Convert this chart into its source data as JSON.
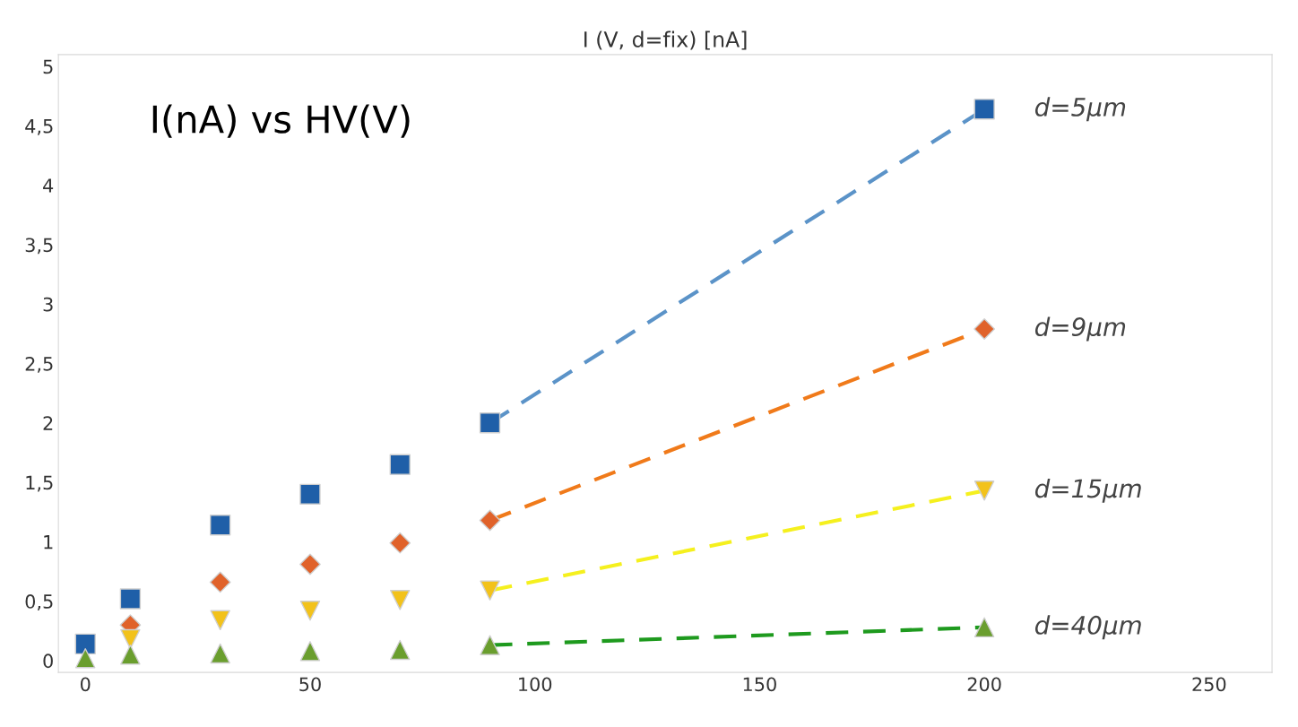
{
  "chart_data": {
    "type": "scatter",
    "title": "I (V, d=fix) [nA]",
    "annotations": [
      "I(nA) vs HV(V)"
    ],
    "xlim": [
      -6,
      264
    ],
    "xticks": [
      0,
      50,
      100,
      150,
      200,
      250
    ],
    "ylim": [
      -0.1,
      5.1
    ],
    "yticks": [
      0,
      {
        "value": 0.5,
        "label": "0,5"
      },
      1,
      {
        "value": 1.5,
        "label": "1,5"
      },
      2,
      {
        "value": 2.5,
        "label": "2,5"
      },
      3,
      {
        "value": 3.5,
        "label": "3,5"
      },
      4,
      {
        "value": 4.5,
        "label": "4,5"
      },
      5
    ],
    "grid": false,
    "legend": false,
    "series": [
      {
        "name": "d=5μm",
        "marker": "square",
        "color": "#1f5fa8",
        "x": [
          0,
          10,
          30,
          50,
          70,
          90,
          200
        ],
        "values": [
          0.14,
          0.52,
          1.14,
          1.4,
          1.65,
          2.0,
          4.64
        ]
      },
      {
        "name": "d=9μm",
        "marker": "diamond",
        "color": "#e0622a",
        "x": [
          10,
          30,
          50,
          70,
          90,
          200
        ],
        "values": [
          0.3,
          0.66,
          0.81,
          0.99,
          1.18,
          2.79
        ]
      },
      {
        "name": "d=15μm",
        "marker": "triangle-down",
        "color": "#f2c21b",
        "x": [
          10,
          30,
          50,
          70,
          90,
          200
        ],
        "values": [
          0.18,
          0.34,
          0.42,
          0.51,
          0.59,
          1.43
        ]
      },
      {
        "name": "d=40μm",
        "marker": "triangle",
        "color": "#6a9e2e",
        "x": [
          0,
          10,
          30,
          50,
          70,
          90,
          200
        ],
        "values": [
          0.02,
          0.05,
          0.06,
          0.08,
          0.09,
          0.13,
          0.28
        ]
      },
      {
        "type": "line",
        "line_style": "dashed",
        "marker": "none",
        "color": "#5b93c8",
        "x": [
          90,
          200
        ],
        "values": [
          2.0,
          4.64
        ]
      },
      {
        "type": "line",
        "line_style": "dashed",
        "marker": "none",
        "color": "#f07a1a",
        "x": [
          90,
          200
        ],
        "values": [
          1.18,
          2.79
        ]
      },
      {
        "type": "line",
        "line_style": "dashed",
        "marker": "none",
        "color": "#f5f01e",
        "x": [
          90,
          200
        ],
        "values": [
          0.59,
          1.43
        ]
      },
      {
        "type": "line",
        "line_style": "dashed",
        "marker": "none",
        "color": "#1e9a1e",
        "x": [
          90,
          200
        ],
        "values": [
          0.13,
          0.28
        ]
      }
    ]
  }
}
